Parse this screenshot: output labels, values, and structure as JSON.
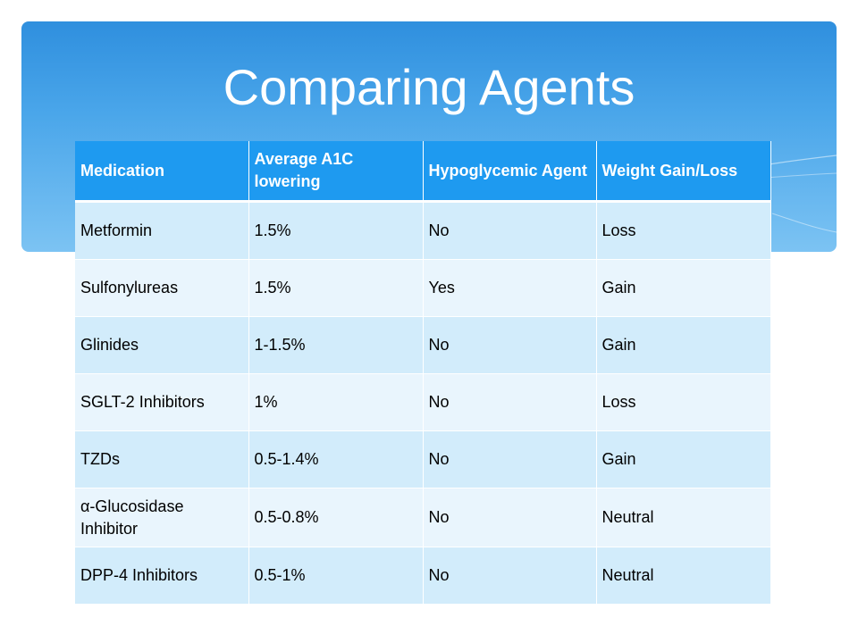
{
  "slide": {
    "title": "Comparing Agents"
  },
  "table": {
    "headers": [
      "Medication",
      "Average A1C lowering",
      "Hypoglycemic Agent",
      "Weight Gain/Loss"
    ],
    "rows": [
      [
        "Metformin",
        "1.5%",
        "No",
        "Loss"
      ],
      [
        "Sulfonylureas",
        "1.5%",
        "Yes",
        "Gain"
      ],
      [
        "Glinides",
        "1-1.5%",
        "No",
        "Gain"
      ],
      [
        "SGLT-2 Inhibitors",
        "1%",
        "No",
        "Loss"
      ],
      [
        "TZDs",
        "0.5-1.4%",
        "No",
        "Gain"
      ],
      [
        "α-Glucosidase Inhibitor",
        "0.5-0.8%",
        "No",
        "Neutral"
      ],
      [
        "DPP-4 Inhibitors",
        "0.5-1%",
        "No",
        "Neutral"
      ]
    ]
  },
  "colors": {
    "header_bg": "#1e9af0",
    "row_odd_bg": "#d2ecfb",
    "row_even_bg": "#e9f5fd",
    "banner_top": "#2f8fde",
    "banner_bottom": "#7cc3f3"
  }
}
